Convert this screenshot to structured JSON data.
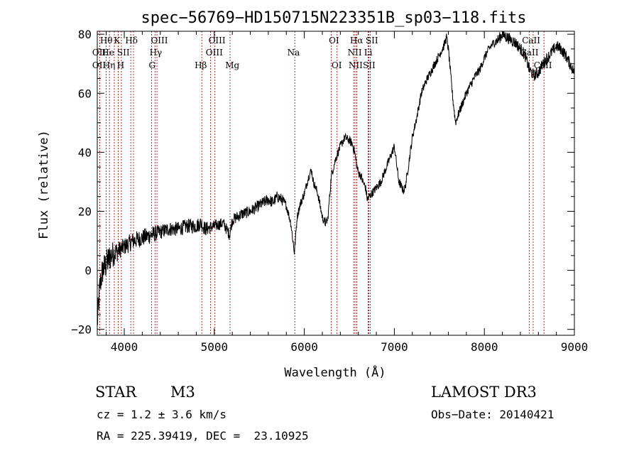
{
  "chart_data": {
    "type": "line",
    "title": "spec−56769−HD150715N223351B_sp03−118.fits",
    "xlabel": "Wavelength (Å)",
    "ylabel": "Flux (relative)",
    "xlim": [
      3700,
      9000
    ],
    "ylim": [
      -22,
      81
    ],
    "x_ticks": [
      4000,
      5000,
      6000,
      7000,
      8000,
      9000
    ],
    "x_tick_labels": [
      "4000",
      "5000",
      "6000",
      "7000",
      "8000",
      "9000"
    ],
    "y_ticks": [
      -20,
      0,
      20,
      40,
      60,
      80
    ],
    "y_tick_labels": [
      "−20",
      "0",
      "20",
      "40",
      "60",
      "80"
    ],
    "series_color": "#000000",
    "line_color": "#8b0000",
    "spectrum_anchors": {
      "x": [
        3700,
        3730,
        3760,
        3800,
        3850,
        3900,
        3950,
        4000,
        4100,
        4200,
        4300,
        4400,
        4500,
        4600,
        4700,
        4800,
        4850,
        4900,
        5000,
        5100,
        5170,
        5200,
        5300,
        5400,
        5500,
        5600,
        5650,
        5700,
        5750,
        5800,
        5850,
        5890,
        5920,
        5950,
        6000,
        6050,
        6080,
        6100,
        6150,
        6200,
        6230,
        6260,
        6300,
        6350,
        6400,
        6450,
        6500,
        6530,
        6560,
        6580,
        6600,
        6630,
        6650,
        6680,
        6700,
        6720,
        6750,
        6800,
        6850,
        6900,
        6950,
        7000,
        7050,
        7100,
        7120,
        7150,
        7200,
        7250,
        7300,
        7350,
        7400,
        7450,
        7500,
        7550,
        7580,
        7600,
        7650,
        7680,
        7700,
        7750,
        7800,
        7850,
        7900,
        7950,
        8000,
        8050,
        8100,
        8150,
        8200,
        8250,
        8300,
        8350,
        8400,
        8450,
        8500,
        8550,
        8600,
        8650,
        8700,
        8750,
        8800,
        8850,
        8900,
        8950,
        9000
      ],
      "y": [
        -18,
        -5,
        0,
        2,
        5,
        6,
        7,
        8,
        10,
        11,
        12,
        13,
        14,
        14,
        15,
        15,
        16,
        14,
        15,
        16,
        12,
        17,
        19,
        20,
        22,
        24,
        23,
        25,
        24,
        22,
        16,
        6,
        18,
        22,
        26,
        32,
        34,
        30,
        26,
        18,
        16,
        17,
        32,
        38,
        42,
        45,
        44,
        43,
        40,
        36,
        33,
        32,
        30,
        28,
        24,
        25,
        26,
        28,
        30,
        34,
        38,
        42,
        30,
        27,
        28,
        34,
        45,
        52,
        60,
        64,
        67,
        70,
        73,
        76,
        79,
        75,
        58,
        50,
        52,
        56,
        60,
        63,
        66,
        68,
        72,
        75,
        77,
        78,
        80,
        79,
        78,
        77,
        75,
        73,
        68,
        66,
        67,
        70,
        72,
        74,
        76,
        75,
        73,
        70,
        67
      ],
      "noise": [
        5,
        5,
        5,
        5,
        5,
        4,
        3,
        3,
        3,
        3,
        3,
        2.5,
        2.5,
        2.5,
        2.5,
        2.5,
        2.5,
        2.5,
        2,
        2,
        2,
        2,
        2,
        2,
        2,
        2,
        2,
        2,
        2,
        1.5,
        1.5,
        1.5,
        1.5,
        1.5,
        1.5,
        1.5,
        1.5,
        1.5,
        1.5,
        1.5,
        1.5,
        1.5,
        1.5,
        1.5,
        1.5,
        1.5,
        1.5,
        1.5,
        1.5,
        1.5,
        1.5,
        1.5,
        1.5,
        1.5,
        1.5,
        1.5,
        1.5,
        1.5,
        1.5,
        1.5,
        1.5,
        1.5,
        1.5,
        1.5,
        1.5,
        1.5,
        1.5,
        1.5,
        1.5,
        1.5,
        1.5,
        1.5,
        1.5,
        1.5,
        1.5,
        1.5,
        1.5,
        1.5,
        1.5,
        1.5,
        1.5,
        1.5,
        1.5,
        1.5,
        1.5,
        1.5,
        1.5,
        2,
        2,
        2,
        2,
        2,
        2,
        2,
        2,
        2,
        2,
        2,
        2,
        2,
        2,
        2,
        2,
        2,
        2
      ]
    },
    "lines": [
      {
        "w": 3727,
        "top": "OII",
        "bottom": "OII"
      },
      {
        "w": 3798,
        "top": "Hθ",
        "bottom": ""
      },
      {
        "w": 3835,
        "top": "Hη",
        "bottom": ""
      },
      {
        "w": 3889,
        "top": "HeI",
        "bottom": "Hη"
      },
      {
        "w": 3933,
        "top": "K",
        "bottom": ""
      },
      {
        "w": 3968,
        "top": "H",
        "bottom": "H"
      },
      {
        "w": 4072,
        "top": "SII",
        "bottom": ""
      },
      {
        "w": 4102,
        "top": "Hδ",
        "bottom": "SII"
      },
      {
        "w": 4304,
        "top": "G",
        "bottom": "G"
      },
      {
        "w": 4341,
        "top": "Hγ",
        "bottom": ""
      },
      {
        "w": 4363,
        "top": "OIII",
        "bottom": ""
      },
      {
        "w": 4861,
        "top": "Hβ",
        "bottom": "Hβ"
      },
      {
        "w": 4959,
        "top": "OIII",
        "bottom": ""
      },
      {
        "w": 5007,
        "top": "OIII",
        "bottom": "OIII"
      },
      {
        "w": 5175,
        "top": "Mg",
        "bottom": "Mg"
      },
      {
        "w": 5894,
        "top": "Na",
        "bottom": "Na"
      },
      {
        "w": 6300,
        "top": "OI",
        "bottom": "OI"
      },
      {
        "w": 6364,
        "top": "OI",
        "bottom": "OI"
      },
      {
        "w": 6548,
        "top": "NII",
        "bottom": "NII"
      },
      {
        "w": 6563,
        "top": "Hα",
        "bottom": "Hα"
      },
      {
        "w": 6583,
        "top": "NII",
        "bottom": "NII"
      },
      {
        "w": 6708,
        "top": "Li",
        "bottom": "Li"
      },
      {
        "w": 6716,
        "top": "SII",
        "bottom": "SII"
      },
      {
        "w": 6731,
        "top": "SII",
        "bottom": "SII"
      },
      {
        "w": 8498,
        "top": "CaII",
        "bottom": "CaII"
      },
      {
        "w": 8542,
        "top": "CaII",
        "bottom": "CaII"
      },
      {
        "w": 8662,
        "top": "CaII",
        "bottom": "CaII"
      }
    ],
    "labels_row1": [
      {
        "w": 3800,
        "text": "Hθ"
      },
      {
        "w": 3920,
        "text": "K"
      },
      {
        "w": 4080,
        "text": "Hδ"
      },
      {
        "w": 4390,
        "text": "OIII"
      },
      {
        "w": 5030,
        "text": "OIII"
      },
      {
        "w": 6330,
        "text": "OI"
      },
      {
        "w": 6580,
        "text": "Hα"
      },
      {
        "w": 6750,
        "text": "SII"
      },
      {
        "w": 8520,
        "text": "CaII"
      }
    ],
    "labels_row2": [
      {
        "w": 3720,
        "text": "OII"
      },
      {
        "w": 3820,
        "text": "He"
      },
      {
        "w": 3990,
        "text": "SII"
      },
      {
        "w": 4350,
        "text": "Hγ"
      },
      {
        "w": 5000,
        "text": "OIII"
      },
      {
        "w": 5880,
        "text": "Na"
      },
      {
        "w": 6560,
        "text": "NII"
      },
      {
        "w": 6710,
        "text": "Li"
      },
      {
        "w": 8500,
        "text": "CaII"
      }
    ],
    "labels_row3": [
      {
        "w": 3720,
        "text": "OII"
      },
      {
        "w": 3830,
        "text": "Hη"
      },
      {
        "w": 3960,
        "text": "H"
      },
      {
        "w": 4310,
        "text": "G"
      },
      {
        "w": 4850,
        "text": "Hβ"
      },
      {
        "w": 5200,
        "text": "Mg"
      },
      {
        "w": 6360,
        "text": "OI"
      },
      {
        "w": 6570,
        "text": "NII"
      },
      {
        "w": 6720,
        "text": "SII"
      },
      {
        "w": 8650,
        "text": "CaII"
      }
    ]
  },
  "info": {
    "object_type": "STAR",
    "subclass": "M3",
    "survey": "LAMOST DR3",
    "cz": "cz = 1.2 ± 3.6 km/s",
    "obs_date": "Obs−Date: 20140421",
    "coords": "RA = 225.39419, DEC =  23.10925"
  }
}
